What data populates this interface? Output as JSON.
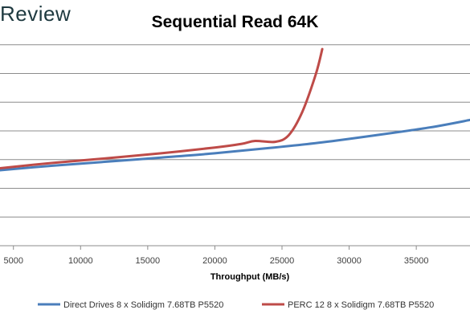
{
  "header": {
    "brand": "Review"
  },
  "chart_data": {
    "type": "line",
    "title": "Sequential Read 64K",
    "xlabel": "Throughput (MB/s)",
    "ylabel": "",
    "xlim": [
      4000,
      39000
    ],
    "ylim": [
      0,
      8
    ],
    "x_ticks": [
      5000,
      10000,
      15000,
      20000,
      25000,
      30000,
      35000
    ],
    "y_gridlines": [
      1,
      2,
      3,
      4,
      5,
      6,
      7
    ],
    "grid": "horizontal",
    "legend_position": "bottom",
    "series": [
      {
        "name": "Direct Drives 8 x Solidigm 7.68TB P5520",
        "color": "#4a7ebb",
        "points": [
          [
            4000,
            2.63
          ],
          [
            8000,
            2.79
          ],
          [
            12000,
            2.93
          ],
          [
            16000,
            3.07
          ],
          [
            20000,
            3.22
          ],
          [
            24000,
            3.4
          ],
          [
            28000,
            3.6
          ],
          [
            32000,
            3.85
          ],
          [
            36000,
            4.12
          ],
          [
            39000,
            4.38
          ]
        ]
      },
      {
        "name": "PERC 12 8 x Solidigm 7.68TB P5520",
        "color": "#be4b48",
        "points": [
          [
            4000,
            2.7
          ],
          [
            8000,
            2.89
          ],
          [
            12000,
            3.05
          ],
          [
            16000,
            3.22
          ],
          [
            20000,
            3.42
          ],
          [
            22000,
            3.55
          ],
          [
            23000,
            3.65
          ],
          [
            24500,
            3.62
          ],
          [
            25500,
            3.85
          ],
          [
            26500,
            4.65
          ],
          [
            27500,
            5.95
          ],
          [
            28000,
            6.85
          ]
        ]
      }
    ]
  }
}
